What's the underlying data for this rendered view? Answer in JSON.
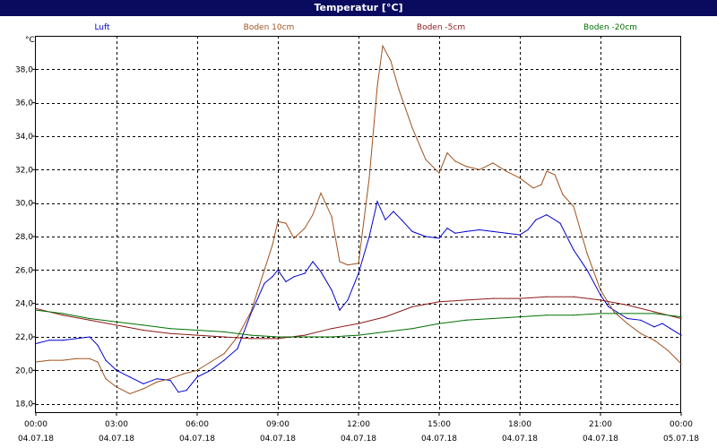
{
  "chart_data": {
    "type": "line",
    "title": "Temperatur [°C]",
    "ylabel": "°C",
    "ylim": [
      17.5,
      40.0
    ],
    "yticks": [
      18.0,
      20.0,
      22.0,
      24.0,
      26.0,
      28.0,
      30.0,
      32.0,
      34.0,
      36.0,
      38.0
    ],
    "ytick_labels": [
      "18,0",
      "20,0",
      "22,0",
      "24,0",
      "26,0",
      "28,0",
      "30,0",
      "32,0",
      "34,0",
      "36,0",
      "38,0"
    ],
    "xlim": [
      0,
      24
    ],
    "xticks": [
      0,
      3,
      6,
      9,
      12,
      15,
      18,
      21,
      24
    ],
    "xtick_times": [
      "00:00",
      "03:00",
      "06:00",
      "09:00",
      "12:00",
      "15:00",
      "18:00",
      "21:00",
      "00:00"
    ],
    "xtick_dates": [
      "04.07.18",
      "04.07.18",
      "04.07.18",
      "04.07.18",
      "04.07.18",
      "04.07.18",
      "04.07.18",
      "04.07.18",
      "05.07.18"
    ],
    "grid": true,
    "legend_position": "top",
    "series": [
      {
        "name": "Luft",
        "color": "#0000cc",
        "x": [
          0,
          0.5,
          1,
          1.5,
          2,
          2.3,
          2.6,
          3,
          3.5,
          4,
          4.5,
          5,
          5.3,
          5.6,
          6,
          6.5,
          7,
          7.5,
          8,
          8.5,
          8.8,
          9,
          9.3,
          9.6,
          10,
          10.3,
          10.6,
          11,
          11.3,
          11.6,
          12,
          12.4,
          12.7,
          13,
          13.3,
          13.6,
          14,
          14.5,
          15,
          15.3,
          15.6,
          16,
          16.5,
          17,
          17.5,
          18,
          18.3,
          18.6,
          19,
          19.5,
          20,
          20.5,
          21,
          21.3,
          21.6,
          22,
          22.5,
          23,
          23.3,
          23.6,
          24
        ],
        "y": [
          21.6,
          21.8,
          21.8,
          21.9,
          22.0,
          21.5,
          20.6,
          20.0,
          19.6,
          19.2,
          19.5,
          19.4,
          18.7,
          18.8,
          19.6,
          20.0,
          20.6,
          21.3,
          23.4,
          25.2,
          25.6,
          26.0,
          25.3,
          25.6,
          25.8,
          26.5,
          25.9,
          24.8,
          23.6,
          24.2,
          25.8,
          28.0,
          30.1,
          29.0,
          29.5,
          29.0,
          28.3,
          28.0,
          27.9,
          28.5,
          28.2,
          28.3,
          28.4,
          28.3,
          28.2,
          28.1,
          28.4,
          29.0,
          29.3,
          28.8,
          27.2,
          26.0,
          24.5,
          23.8,
          23.5,
          23.1,
          23.0,
          22.6,
          22.8,
          22.5,
          22.1
        ]
      },
      {
        "name": "Boden 10cm",
        "color": "#a0521e",
        "x": [
          0,
          0.5,
          1,
          1.5,
          2,
          2.3,
          2.6,
          3,
          3.5,
          4,
          4.5,
          5,
          5.5,
          6,
          6.5,
          7,
          7.5,
          8,
          8.5,
          8.8,
          9,
          9.3,
          9.6,
          10,
          10.3,
          10.6,
          11,
          11.3,
          11.6,
          12,
          12.4,
          12.7,
          12.9,
          13.2,
          13.5,
          14,
          14.5,
          15,
          15.3,
          15.6,
          16,
          16.5,
          17,
          17.5,
          18,
          18.5,
          18.8,
          19,
          19.3,
          19.6,
          20,
          20.5,
          21,
          21.5,
          22,
          22.5,
          23,
          23.5,
          24
        ],
        "y": [
          20.5,
          20.6,
          20.6,
          20.7,
          20.7,
          20.5,
          19.5,
          19.0,
          18.6,
          18.9,
          19.3,
          19.5,
          19.8,
          20.0,
          20.5,
          21.0,
          22.0,
          23.5,
          26.0,
          27.5,
          28.9,
          28.8,
          27.9,
          28.5,
          29.3,
          30.6,
          29.2,
          26.5,
          26.3,
          26.4,
          31.5,
          37.0,
          39.4,
          38.5,
          36.8,
          34.5,
          32.6,
          31.8,
          33.0,
          32.5,
          32.2,
          32.0,
          32.4,
          31.9,
          31.5,
          30.9,
          31.1,
          31.9,
          31.7,
          30.5,
          29.8,
          27.0,
          24.8,
          23.5,
          22.8,
          22.2,
          21.8,
          21.2,
          20.4
        ]
      },
      {
        "name": "Boden -5cm",
        "color": "#8b1a1a",
        "x": [
          0,
          1,
          2,
          3,
          4,
          5,
          6,
          7,
          8,
          9,
          10,
          11,
          12,
          13,
          14,
          15,
          16,
          17,
          18,
          19,
          20,
          21,
          22,
          23,
          24
        ],
        "y": [
          23.7,
          23.3,
          23.0,
          22.7,
          22.4,
          22.2,
          22.1,
          22.0,
          21.9,
          21.9,
          22.1,
          22.5,
          22.8,
          23.2,
          23.8,
          24.1,
          24.2,
          24.3,
          24.3,
          24.4,
          24.4,
          24.2,
          23.9,
          23.5,
          23.1
        ]
      },
      {
        "name": "Boden -20cm",
        "color": "#007000",
        "x": [
          0,
          1,
          2,
          3,
          4,
          5,
          6,
          7,
          8,
          9,
          10,
          11,
          12,
          13,
          14,
          15,
          16,
          17,
          18,
          19,
          20,
          21,
          22,
          23,
          24
        ],
        "y": [
          23.6,
          23.4,
          23.1,
          22.9,
          22.7,
          22.5,
          22.4,
          22.3,
          22.1,
          22.0,
          22.0,
          22.0,
          22.1,
          22.3,
          22.5,
          22.8,
          23.0,
          23.1,
          23.2,
          23.3,
          23.3,
          23.4,
          23.4,
          23.4,
          23.2
        ]
      }
    ]
  }
}
